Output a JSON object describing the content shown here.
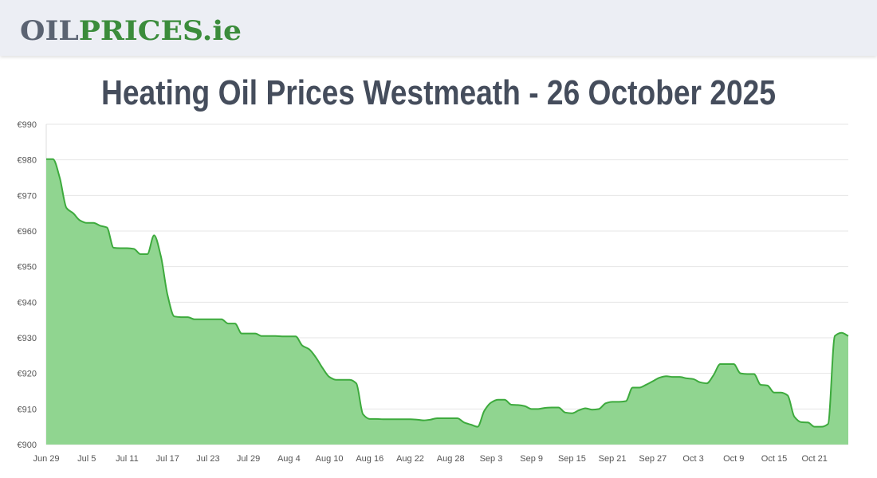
{
  "logo": {
    "parts": [
      "OIL",
      "PRICES",
      ".ie"
    ]
  },
  "chart_data": {
    "type": "line",
    "title": "Heating Oil Prices Westmeath - 26 October 2025",
    "categories": [
      "Jun 29",
      null,
      null,
      null,
      null,
      null,
      "Jul 5",
      null,
      null,
      null,
      null,
      null,
      "Jul 11",
      null,
      null,
      null,
      null,
      null,
      "Jul 17",
      null,
      null,
      null,
      null,
      null,
      "Jul 23",
      null,
      null,
      null,
      null,
      null,
      "Jul 29",
      null,
      null,
      null,
      null,
      null,
      "Aug 4",
      null,
      null,
      null,
      null,
      null,
      "Aug 10",
      null,
      null,
      null,
      null,
      null,
      "Aug 16",
      null,
      null,
      null,
      null,
      null,
      "Aug 22",
      null,
      null,
      null,
      null,
      null,
      "Aug 28",
      null,
      null,
      null,
      null,
      null,
      "Sep 3",
      null,
      null,
      null,
      null,
      null,
      "Sep 9",
      null,
      null,
      null,
      null,
      null,
      "Sep 15",
      null,
      null,
      null,
      null,
      null,
      "Sep 21",
      null,
      null,
      null,
      null,
      null,
      "Sep 27",
      null,
      null,
      null,
      null,
      null,
      "Oct 3",
      null,
      null,
      null,
      null,
      null,
      "Oct 9",
      null,
      null,
      null,
      null,
      null,
      "Oct 15",
      null,
      null,
      null,
      null,
      null,
      "Oct 21",
      null,
      null,
      null,
      null,
      null
    ],
    "values": [
      980.2,
      980.2,
      975,
      966.5,
      965,
      963,
      962.3,
      962.3,
      961.5,
      961,
      955.3,
      955.2,
      955.2,
      955,
      953.5,
      953.5,
      958.8,
      953,
      942,
      936,
      935.8,
      935.8,
      935.2,
      935.2,
      935.2,
      935.2,
      935.2,
      934,
      934,
      931.2,
      931.2,
      931.2,
      930.5,
      930.5,
      930.5,
      930.4,
      930.4,
      930.4,
      927.8,
      926.8,
      924.5,
      921.5,
      919,
      918.2,
      918.2,
      918.2,
      917.2,
      908.5,
      907.2,
      907.2,
      907.1,
      907.1,
      907.1,
      907.1,
      907.1,
      907.0,
      906.8,
      907.0,
      907.4,
      907.4,
      907.4,
      907.4,
      906.2,
      905.6,
      905.0,
      909.5,
      911.8,
      912.6,
      912.6,
      911.2,
      911.1,
      910.8,
      910,
      910,
      910.3,
      910.4,
      910.4,
      909.0,
      908.8,
      909.6,
      910.2,
      909.8,
      910.0,
      911.6,
      912,
      912,
      912.2,
      916,
      916,
      916.8,
      917.8,
      918.8,
      919.2,
      919,
      919,
      918.6,
      918.4,
      917.5,
      917.2,
      919.5,
      922.6,
      922.6,
      922.6,
      920,
      919.8,
      919.8,
      916.8,
      916.6,
      914.6,
      914.6,
      913.8,
      907.8,
      906.3,
      906.2,
      905.0,
      905.0,
      905.8,
      930.5,
      931.4,
      930.5
    ],
    "color": "#3daa3d",
    "fill_color": "#90d590",
    "ylim": [
      900,
      990
    ],
    "yticks": [
      {
        "value": 900,
        "label": "€900"
      },
      {
        "value": 910,
        "label": "€910"
      },
      {
        "value": 920,
        "label": "€920"
      },
      {
        "value": 930,
        "label": "€930"
      },
      {
        "value": 940,
        "label": "€940"
      },
      {
        "value": 950,
        "label": "€950"
      },
      {
        "value": 960,
        "label": "€960"
      },
      {
        "value": 970,
        "label": "€970"
      },
      {
        "value": 980,
        "label": "€980"
      },
      {
        "value": 990,
        "label": "€990"
      }
    ],
    "grid": true
  }
}
